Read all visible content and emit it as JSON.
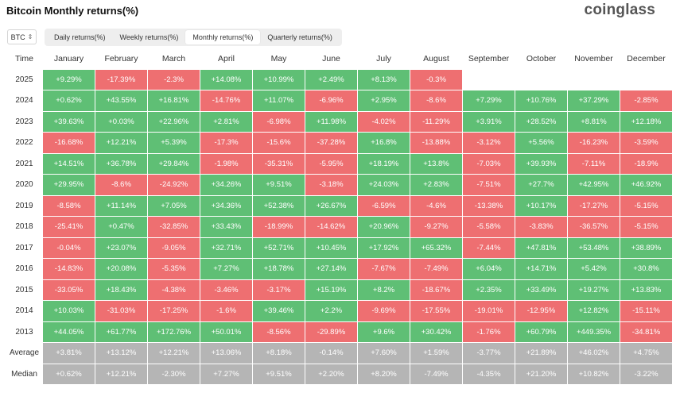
{
  "header": {
    "title": "Bitcoin Monthly returns(%)",
    "brand": "coinglass"
  },
  "toolbar": {
    "asset": "BTC",
    "tabs": [
      "Daily returns(%)",
      "Weekly returns(%)",
      "Monthly returns(%)",
      "Quarterly returns(%)"
    ],
    "active_tab": 2
  },
  "colors": {
    "positive": "#5fbf75",
    "negative": "#ee6f71",
    "stat": "#b5b5b5"
  },
  "table": {
    "corner_label": "Time",
    "months": [
      "January",
      "February",
      "March",
      "April",
      "May",
      "June",
      "July",
      "August",
      "September",
      "October",
      "November",
      "December"
    ],
    "rows": [
      {
        "year": "2025",
        "values": [
          "+9.29%",
          "-17.39%",
          "-2.3%",
          "+14.08%",
          "+10.99%",
          "+2.49%",
          "+8.13%",
          "-0.3%",
          "",
          "",
          "",
          ""
        ]
      },
      {
        "year": "2024",
        "values": [
          "+0.62%",
          "+43.55%",
          "+16.81%",
          "-14.76%",
          "+11.07%",
          "-6.96%",
          "+2.95%",
          "-8.6%",
          "+7.29%",
          "+10.76%",
          "+37.29%",
          "-2.85%"
        ]
      },
      {
        "year": "2023",
        "values": [
          "+39.63%",
          "+0.03%",
          "+22.96%",
          "+2.81%",
          "-6.98%",
          "+11.98%",
          "-4.02%",
          "-11.29%",
          "+3.91%",
          "+28.52%",
          "+8.81%",
          "+12.18%"
        ]
      },
      {
        "year": "2022",
        "values": [
          "-16.68%",
          "+12.21%",
          "+5.39%",
          "-17.3%",
          "-15.6%",
          "-37.28%",
          "+16.8%",
          "-13.88%",
          "-3.12%",
          "+5.56%",
          "-16.23%",
          "-3.59%"
        ]
      },
      {
        "year": "2021",
        "values": [
          "+14.51%",
          "+36.78%",
          "+29.84%",
          "-1.98%",
          "-35.31%",
          "-5.95%",
          "+18.19%",
          "+13.8%",
          "-7.03%",
          "+39.93%",
          "-7.11%",
          "-18.9%"
        ]
      },
      {
        "year": "2020",
        "values": [
          "+29.95%",
          "-8.6%",
          "-24.92%",
          "+34.26%",
          "+9.51%",
          "-3.18%",
          "+24.03%",
          "+2.83%",
          "-7.51%",
          "+27.7%",
          "+42.95%",
          "+46.92%"
        ]
      },
      {
        "year": "2019",
        "values": [
          "-8.58%",
          "+11.14%",
          "+7.05%",
          "+34.36%",
          "+52.38%",
          "+26.67%",
          "-6.59%",
          "-4.6%",
          "-13.38%",
          "+10.17%",
          "-17.27%",
          "-5.15%"
        ]
      },
      {
        "year": "2018",
        "values": [
          "-25.41%",
          "+0.47%",
          "-32.85%",
          "+33.43%",
          "-18.99%",
          "-14.62%",
          "+20.96%",
          "-9.27%",
          "-5.58%",
          "-3.83%",
          "-36.57%",
          "-5.15%"
        ]
      },
      {
        "year": "2017",
        "values": [
          "-0.04%",
          "+23.07%",
          "-9.05%",
          "+32.71%",
          "+52.71%",
          "+10.45%",
          "+17.92%",
          "+65.32%",
          "-7.44%",
          "+47.81%",
          "+53.48%",
          "+38.89%"
        ]
      },
      {
        "year": "2016",
        "values": [
          "-14.83%",
          "+20.08%",
          "-5.35%",
          "+7.27%",
          "+18.78%",
          "+27.14%",
          "-7.67%",
          "-7.49%",
          "+6.04%",
          "+14.71%",
          "+5.42%",
          "+30.8%"
        ]
      },
      {
        "year": "2015",
        "values": [
          "-33.05%",
          "+18.43%",
          "-4.38%",
          "-3.46%",
          "-3.17%",
          "+15.19%",
          "+8.2%",
          "-18.67%",
          "+2.35%",
          "+33.49%",
          "+19.27%",
          "+13.83%"
        ]
      },
      {
        "year": "2014",
        "values": [
          "+10.03%",
          "-31.03%",
          "-17.25%",
          "-1.6%",
          "+39.46%",
          "+2.2%",
          "-9.69%",
          "-17.55%",
          "-19.01%",
          "-12.95%",
          "+12.82%",
          "-15.11%"
        ]
      },
      {
        "year": "2013",
        "values": [
          "+44.05%",
          "+61.77%",
          "+172.76%",
          "+50.01%",
          "-8.56%",
          "-29.89%",
          "+9.6%",
          "+30.42%",
          "-1.76%",
          "+60.79%",
          "+449.35%",
          "-34.81%"
        ]
      }
    ],
    "stats": [
      {
        "label": "Average",
        "values": [
          "+3.81%",
          "+13.12%",
          "+12.21%",
          "+13.06%",
          "+8.18%",
          "-0.14%",
          "+7.60%",
          "+1.59%",
          "-3.77%",
          "+21.89%",
          "+46.02%",
          "+4.75%"
        ]
      },
      {
        "label": "Median",
        "values": [
          "+0.62%",
          "+12.21%",
          "-2.30%",
          "+7.27%",
          "+9.51%",
          "+2.20%",
          "+8.20%",
          "-7.49%",
          "-4.35%",
          "+21.20%",
          "+10.82%",
          "-3.22%"
        ]
      }
    ]
  }
}
